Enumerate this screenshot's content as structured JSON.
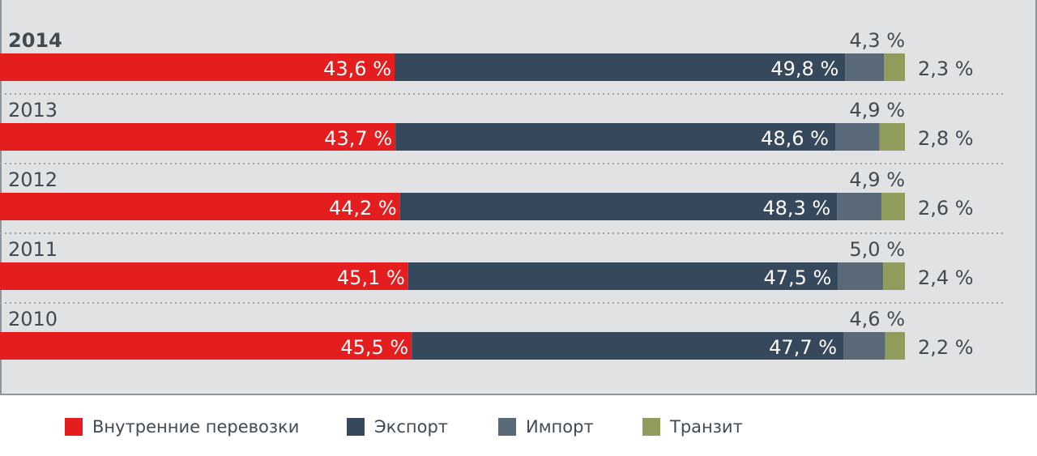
{
  "chart_data": {
    "type": "bar",
    "orientation": "horizontal",
    "stacked": true,
    "percent_stacked": true,
    "categories": [
      "2014",
      "2013",
      "2012",
      "2011",
      "2010"
    ],
    "highlighted_category": "2014",
    "series": [
      {
        "name": "Внутренние перевозки",
        "color": "#e41e1e",
        "values": [
          43.6,
          43.7,
          44.2,
          45.1,
          45.5
        ],
        "labels": [
          "43,6 %",
          "43,7 %",
          "44,2 %",
          "45,1 %",
          "45,5 %"
        ]
      },
      {
        "name": "Экспорт",
        "color": "#36485c",
        "values": [
          49.8,
          48.6,
          48.3,
          47.5,
          47.7
        ],
        "labels": [
          "49,8 %",
          "48,6 %",
          "48,3 %",
          "47,5 %",
          "47,7 %"
        ]
      },
      {
        "name": "Импорт",
        "color": "#5a6978",
        "values": [
          4.3,
          4.9,
          4.9,
          5.0,
          4.6
        ],
        "labels": [
          "4,3 %",
          "4,9 %",
          "4,9 %",
          "5,0 %",
          "4,6 %"
        ]
      },
      {
        "name": "Транзит",
        "color": "#8f9c5c",
        "values": [
          2.3,
          2.8,
          2.6,
          2.4,
          2.2
        ],
        "labels": [
          "2,3 %",
          "2,8 %",
          "2,6 %",
          "2,4 %",
          "2,2 %"
        ]
      }
    ],
    "xlim": [
      0,
      100
    ],
    "grid": false,
    "legend_position": "bottom",
    "colors": {
      "plot_background": "#e1e2e4",
      "separator": "#9aa3ab",
      "text": "#404a52",
      "inner_label": "#ffffff"
    }
  }
}
